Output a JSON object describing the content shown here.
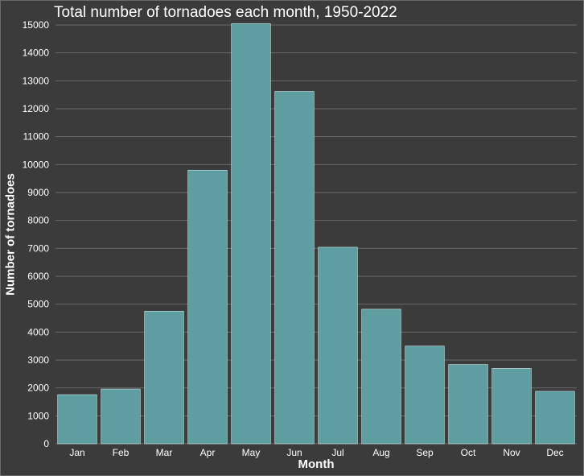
{
  "chart_data": {
    "type": "bar",
    "title": "Total number of tornadoes each month, 1950-2022",
    "xlabel": "Month",
    "ylabel": "Number of tornadoes",
    "categories": [
      "Jan",
      "Feb",
      "Mar",
      "Apr",
      "May",
      "Jun",
      "Jul",
      "Aug",
      "Sep",
      "Oct",
      "Nov",
      "Dec"
    ],
    "values": [
      1760,
      1960,
      4750,
      9800,
      15050,
      12620,
      7040,
      4820,
      3500,
      2840,
      2700,
      1880
    ],
    "ylim": [
      0,
      15000
    ],
    "yticks": [
      0,
      1000,
      2000,
      3000,
      4000,
      5000,
      6000,
      7000,
      8000,
      9000,
      10000,
      11000,
      12000,
      13000,
      14000,
      15000
    ],
    "grid": true,
    "legend": "none",
    "colors": {
      "bar": "#5e9ea0",
      "bar_edge": "#cfe6e6",
      "background": "#3b3b3b",
      "grid": "#6b6b6b",
      "text": "#ffffff"
    }
  }
}
